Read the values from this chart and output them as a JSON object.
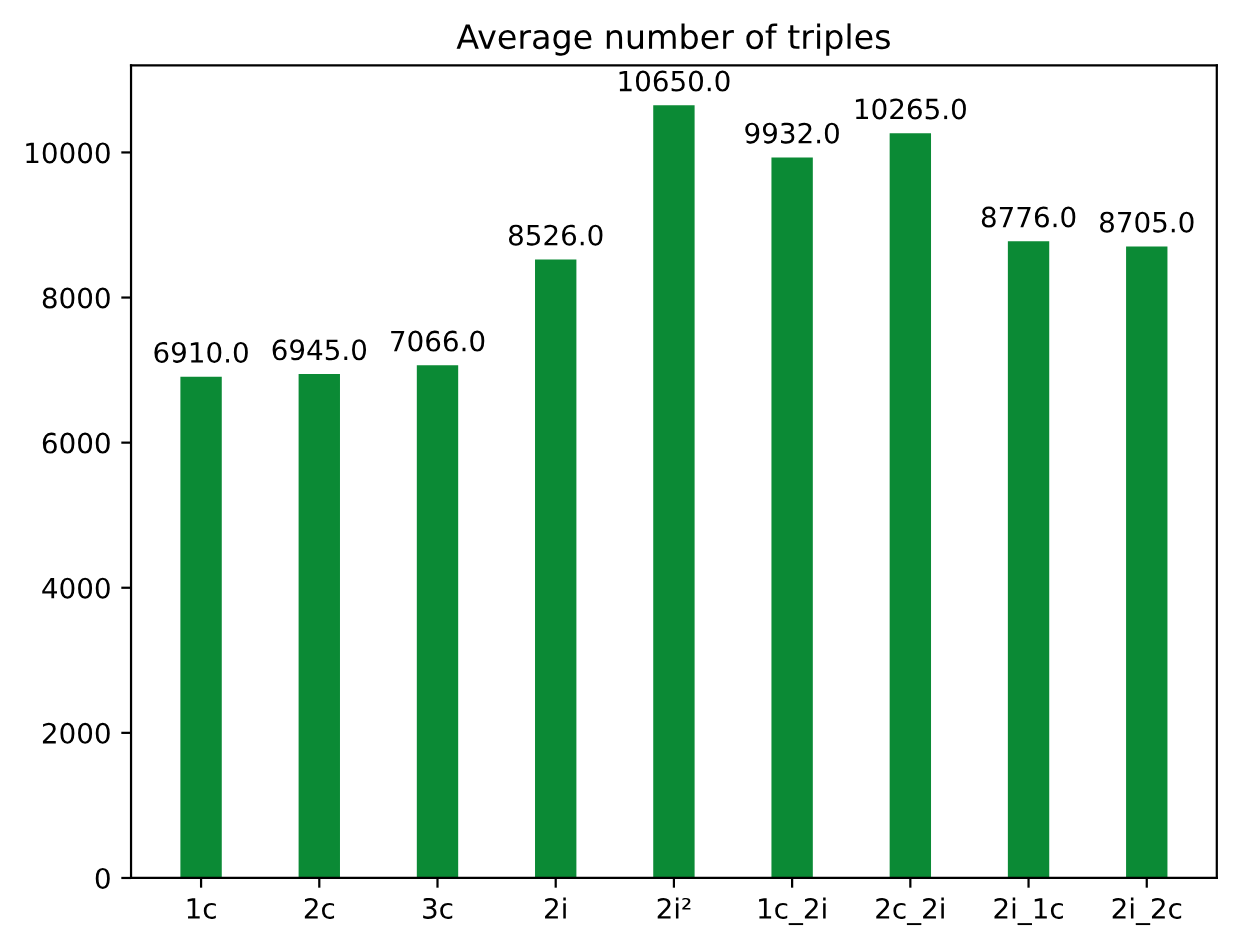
{
  "chart_data": {
    "type": "bar",
    "title": "Average number of triples",
    "categories": [
      "1c",
      "2c",
      "3c",
      "2i",
      "2i²",
      "1c_2i",
      "2c_2i",
      "2i_1c",
      "2i_2c"
    ],
    "values": [
      6910,
      6945,
      7066,
      8526,
      10650,
      9932,
      10265,
      8776,
      8705
    ],
    "value_labels": [
      "6910.0",
      "6945.0",
      "7066.0",
      "8526.0",
      "10650.0",
      "9932.0",
      "10265.0",
      "8776.0",
      "8705.0"
    ],
    "color": "#0b8a35",
    "ylim": [
      0,
      11200
    ],
    "yticks": [
      0,
      2000,
      4000,
      6000,
      8000,
      10000
    ]
  }
}
